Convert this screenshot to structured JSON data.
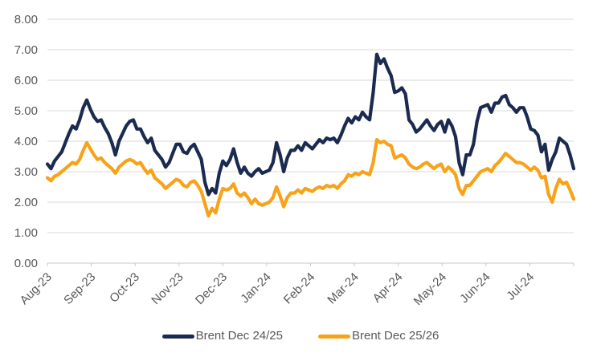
{
  "chart_data": {
    "type": "line",
    "title": "",
    "xlabel": "",
    "ylabel": "",
    "ylim": [
      0,
      8
    ],
    "grid": "horizontal",
    "legend_position": "bottom",
    "y_tick_labels": [
      "0.00",
      "1.00",
      "2.00",
      "3.00",
      "4.00",
      "5.00",
      "6.00",
      "7.00",
      "8.00"
    ],
    "x_tick_labels": [
      "Aug-23",
      "Sep-23",
      "Oct-23",
      "Nov-23",
      "Dec-23",
      "Jan-24",
      "Feb-24",
      "Mar-24",
      "Apr-24",
      "May-24",
      "Jun-24",
      "Jul-24"
    ],
    "series": [
      {
        "name": "Brent Dec 24/25",
        "color": "#1b2a4f",
        "values": [
          3.25,
          3.1,
          3.35,
          3.5,
          3.65,
          3.95,
          4.25,
          4.5,
          4.4,
          4.7,
          5.1,
          5.35,
          5.05,
          4.8,
          4.65,
          4.7,
          4.45,
          4.25,
          3.95,
          3.55,
          4.0,
          4.25,
          4.5,
          4.65,
          4.7,
          4.4,
          4.4,
          4.15,
          3.95,
          4.1,
          3.7,
          3.55,
          3.4,
          3.15,
          3.3,
          3.6,
          3.9,
          3.9,
          3.65,
          3.6,
          3.8,
          3.9,
          3.65,
          3.4,
          2.65,
          2.25,
          2.45,
          2.3,
          2.95,
          3.35,
          3.2,
          3.4,
          3.75,
          3.3,
          2.95,
          3.15,
          2.95,
          2.85,
          3.0,
          3.1,
          2.95,
          3.0,
          3.05,
          3.3,
          3.95,
          3.55,
          3.0,
          3.45,
          3.7,
          3.7,
          3.85,
          3.7,
          3.95,
          3.85,
          3.75,
          3.9,
          4.05,
          3.95,
          4.1,
          4.05,
          4.1,
          3.95,
          4.2,
          4.5,
          4.75,
          4.6,
          4.8,
          4.7,
          4.95,
          4.8,
          4.7,
          5.6,
          6.85,
          6.55,
          6.7,
          6.4,
          6.15,
          5.6,
          5.65,
          5.75,
          5.55,
          4.7,
          4.55,
          4.3,
          4.4,
          4.55,
          4.7,
          4.5,
          4.35,
          4.55,
          4.65,
          4.3,
          4.7,
          4.5,
          4.15,
          3.3,
          2.9,
          3.55,
          3.55,
          3.9,
          4.65,
          5.1,
          5.15,
          5.2,
          4.95,
          5.25,
          5.25,
          5.45,
          5.5,
          5.2,
          5.1,
          4.95,
          5.1,
          5.1,
          4.8,
          4.4,
          4.35,
          4.2,
          3.65,
          3.9,
          3.05,
          3.4,
          3.65,
          4.1,
          4.0,
          3.9,
          3.55,
          3.1
        ]
      },
      {
        "name": "Brent Dec 25/26",
        "color": "#f7a31a",
        "values": [
          2.8,
          2.7,
          2.85,
          2.9,
          3.0,
          3.1,
          3.2,
          3.3,
          3.25,
          3.4,
          3.7,
          3.95,
          3.75,
          3.55,
          3.4,
          3.45,
          3.3,
          3.2,
          3.1,
          2.95,
          3.15,
          3.25,
          3.35,
          3.4,
          3.35,
          3.25,
          3.3,
          3.1,
          2.95,
          3.05,
          2.8,
          2.7,
          2.6,
          2.45,
          2.55,
          2.65,
          2.75,
          2.7,
          2.55,
          2.5,
          2.65,
          2.7,
          2.55,
          2.35,
          1.95,
          1.55,
          1.8,
          1.65,
          2.1,
          2.45,
          2.4,
          2.45,
          2.6,
          2.3,
          2.2,
          2.3,
          2.15,
          1.95,
          2.1,
          1.95,
          1.9,
          1.95,
          2.0,
          2.15,
          2.5,
          2.2,
          1.85,
          2.15,
          2.3,
          2.3,
          2.4,
          2.3,
          2.45,
          2.4,
          2.35,
          2.45,
          2.5,
          2.45,
          2.55,
          2.5,
          2.55,
          2.45,
          2.6,
          2.7,
          2.9,
          2.85,
          2.95,
          2.9,
          3.0,
          2.95,
          2.9,
          3.3,
          4.05,
          3.95,
          4.0,
          3.9,
          3.85,
          3.45,
          3.5,
          3.55,
          3.45,
          3.25,
          3.15,
          3.1,
          3.15,
          3.25,
          3.3,
          3.2,
          3.1,
          3.2,
          3.25,
          3.0,
          3.15,
          3.05,
          2.9,
          2.45,
          2.25,
          2.55,
          2.55,
          2.7,
          2.85,
          3.0,
          3.05,
          3.1,
          3.0,
          3.2,
          3.3,
          3.45,
          3.6,
          3.5,
          3.4,
          3.3,
          3.3,
          3.25,
          3.15,
          3.05,
          3.15,
          3.05,
          2.8,
          2.85,
          2.25,
          2.0,
          2.45,
          2.75,
          2.6,
          2.65,
          2.4,
          2.1
        ]
      }
    ]
  },
  "colors": {
    "background": "#ffffff",
    "gridline": "#d9d9d9",
    "axis_line": "#c9c9c9",
    "axis_text": "#595959",
    "legend_text": "#595959",
    "series_1": "#1b2a4f",
    "series_2": "#f7a31a"
  }
}
